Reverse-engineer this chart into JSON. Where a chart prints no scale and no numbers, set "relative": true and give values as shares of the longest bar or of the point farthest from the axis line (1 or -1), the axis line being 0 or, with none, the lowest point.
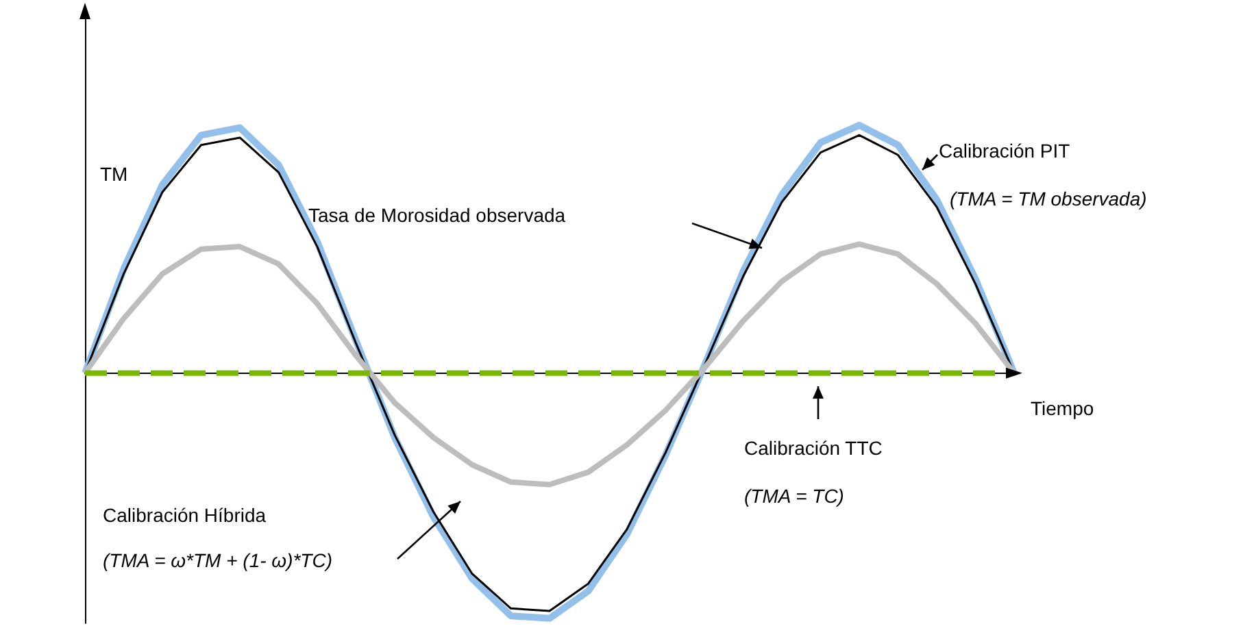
{
  "chart_data": {
    "type": "line",
    "relative": true,
    "ylabel": "TM",
    "xlabel": "Tiempo",
    "marker": "none",
    "categories": [
      null,
      null,
      null,
      null,
      null,
      null,
      null,
      null,
      null,
      null,
      null,
      null,
      null,
      null,
      null,
      null,
      null,
      null,
      null,
      null,
      null,
      null,
      null,
      null,
      null
    ],
    "series": [
      {
        "color": "#92c0ea",
        "values": [
          0,
          0.42,
          0.76,
          0.96,
          0.99,
          0.84,
          0.53,
          0.13,
          -0.26,
          -0.58,
          -0.83,
          -0.98,
          -0.99,
          -0.88,
          -0.65,
          -0.33,
          0.03,
          0.41,
          0.72,
          0.93,
          1.0,
          0.92,
          0.7,
          0.38,
          0
        ]
      },
      {
        "color": "#000000",
        "values": [
          0,
          0.4,
          0.73,
          0.92,
          0.95,
          0.81,
          0.51,
          0.12,
          -0.25,
          -0.56,
          -0.81,
          -0.95,
          -0.96,
          -0.85,
          -0.63,
          -0.32,
          0.03,
          0.39,
          0.69,
          0.89,
          0.96,
          0.88,
          0.67,
          0.36,
          0
        ]
      },
      {
        "color": "#bdbdbd",
        "values": [
          0,
          0.22,
          0.4,
          0.5,
          0.51,
          0.44,
          0.28,
          0.07,
          -0.12,
          -0.26,
          -0.37,
          -0.44,
          -0.45,
          -0.4,
          -0.29,
          -0.15,
          0.02,
          0.21,
          0.37,
          0.48,
          0.52,
          0.48,
          0.36,
          0.2,
          0
        ]
      },
      {
        "color": "#7ab800",
        "line_style": "dashed",
        "values": [
          0,
          0,
          0,
          0,
          0,
          0,
          0,
          0,
          0,
          0,
          0,
          0,
          0,
          0,
          0,
          0,
          0,
          0,
          0,
          0,
          0,
          0,
          0,
          0,
          0
        ]
      }
    ],
    "annotations": [
      "Calibración PIT",
      "Tasa de Morosidad observada",
      "Calibración Híbrida",
      "Calibración TTC",
      "(TMA = TM observada)",
      "(TMA = TC)",
      "(TMA = ω*TM + (1- ω)*TC)"
    ]
  }
}
